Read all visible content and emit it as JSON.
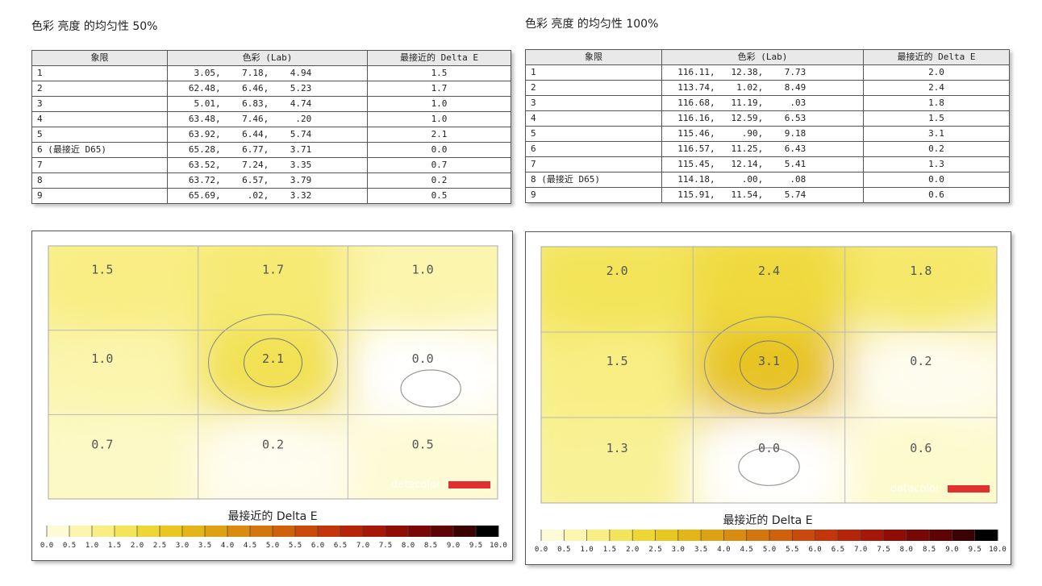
{
  "panels": [
    {
      "title": "色彩 亮度 的均匀性 50%",
      "table": {
        "headers": [
          "象限",
          "色彩 (Lab)",
          "最接近的 Delta E"
        ],
        "rows": [
          [
            "1",
            "    3.05,    7.18,    4.94",
            "1.5"
          ],
          [
            "2",
            "   62.48,    6.46,    5.23",
            "1.7"
          ],
          [
            "3",
            "    5.01,    6.83,    4.74",
            "1.0"
          ],
          [
            "4",
            "   63.48,    7.46,     .20",
            "1.0"
          ],
          [
            "5",
            "   63.92,    6.44,    5.74",
            "2.1"
          ],
          [
            "6 (最接近 D65)",
            "   65.28,    6.77,    3.71",
            "0.0"
          ],
          [
            "7",
            "   63.52,    7.24,    3.35",
            "0.7"
          ],
          [
            "8",
            "   63.72,    6.57,    3.79",
            "0.2"
          ],
          [
            "9",
            "   65.69,     .02,    3.32",
            "0.5"
          ]
        ]
      },
      "chart_data": {
        "type": "heatmap",
        "grid": [
          [
            1.5,
            1.7,
            1.0
          ],
          [
            1.0,
            2.1,
            0.0
          ],
          [
            0.7,
            0.2,
            0.5
          ]
        ],
        "legend_title": "最接近的 Delta E",
        "legend_ticks": [
          "0.0",
          "0.5",
          "1.0",
          "1.5",
          "2.0",
          "2.5",
          "3.0",
          "3.5",
          "4.0",
          "4.5",
          "5.0",
          "5.5",
          "6.0",
          "6.5",
          "7.0",
          "7.5",
          "8.0",
          "8.5",
          "9.0",
          "9.5",
          "10.0"
        ],
        "watermark": "datacolor"
      }
    },
    {
      "title": "色彩 亮度 的均匀性 100%",
      "table": {
        "headers": [
          "象限",
          "色彩 (Lab)",
          "最接近的 Delta E"
        ],
        "rows": [
          [
            "1",
            "  116.11,   12.38,    7.73",
            "2.0"
          ],
          [
            "2",
            "  113.74,    1.02,    8.49",
            "2.4"
          ],
          [
            "3",
            "  116.68,   11.19,     .03",
            "1.8"
          ],
          [
            "4",
            "  116.16,   12.59,    6.53",
            "1.5"
          ],
          [
            "5",
            "  115.46,     .90,    9.18",
            "3.1"
          ],
          [
            "6",
            "  116.57,   11.25,    6.43",
            "0.2"
          ],
          [
            "7",
            "  115.45,   12.14,    5.41",
            "1.3"
          ],
          [
            "8 (最接近 D65)",
            "  114.18,     .00,     .08",
            "0.0"
          ],
          [
            "9",
            "  115.91,   11.54,    5.74",
            "0.6"
          ]
        ]
      },
      "chart_data": {
        "type": "heatmap",
        "grid": [
          [
            2.0,
            2.4,
            1.8
          ],
          [
            1.5,
            3.1,
            0.2
          ],
          [
            1.3,
            0.0,
            0.6
          ]
        ],
        "legend_title": "最接近的 Delta E",
        "legend_ticks": [
          "0.0",
          "0.5",
          "1.0",
          "1.5",
          "2.0",
          "2.5",
          "3.0",
          "3.5",
          "4.0",
          "4.5",
          "5.0",
          "5.5",
          "6.0",
          "6.5",
          "7.0",
          "7.5",
          "8.0",
          "8.5",
          "9.0",
          "9.5",
          "10.0"
        ],
        "watermark": "datacolor"
      }
    }
  ],
  "colors": {
    "scale": [
      "#ffffff",
      "#fdfbd6",
      "#fbf5ae",
      "#f8ee84",
      "#f3e45a",
      "#eed635",
      "#e8c722",
      "#e3b519",
      "#dea114",
      "#d98c10",
      "#d4760e",
      "#cf600c",
      "#c94a0b",
      "#c2360a",
      "#b52409",
      "#a51708",
      "#900d07",
      "#780706",
      "#5e0404",
      "#3a0202",
      "#000000"
    ],
    "watermark_bar": "#e03030"
  }
}
